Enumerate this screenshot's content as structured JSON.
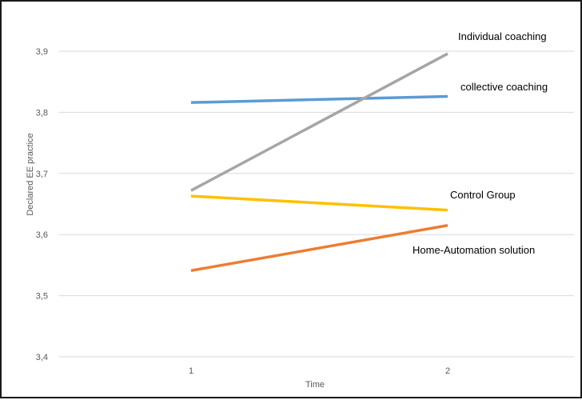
{
  "chart_data": {
    "type": "line",
    "title": "",
    "xlabel": "Time",
    "ylabel": "Declared EE practice",
    "x": [
      "1",
      "2"
    ],
    "ylim": [
      3.4,
      3.9
    ],
    "y_ticks": [
      "3,4",
      "3,5",
      "3,6",
      "3,7",
      "3,8",
      "3,9"
    ],
    "grid": true,
    "legend": "inline labels at line ends",
    "series": [
      {
        "name": "collective coaching",
        "values": [
          3.816,
          3.826
        ],
        "color": "#5b9bd5"
      },
      {
        "name": "Individual coaching",
        "values": [
          3.672,
          3.896
        ],
        "color": "#a5a5a5"
      },
      {
        "name": "Control Group",
        "values": [
          3.663,
          3.64
        ],
        "color": "#ffc000"
      },
      {
        "name": "Home-Automation solution",
        "values": [
          3.541,
          3.615
        ],
        "color": "#ed7d31"
      }
    ]
  }
}
